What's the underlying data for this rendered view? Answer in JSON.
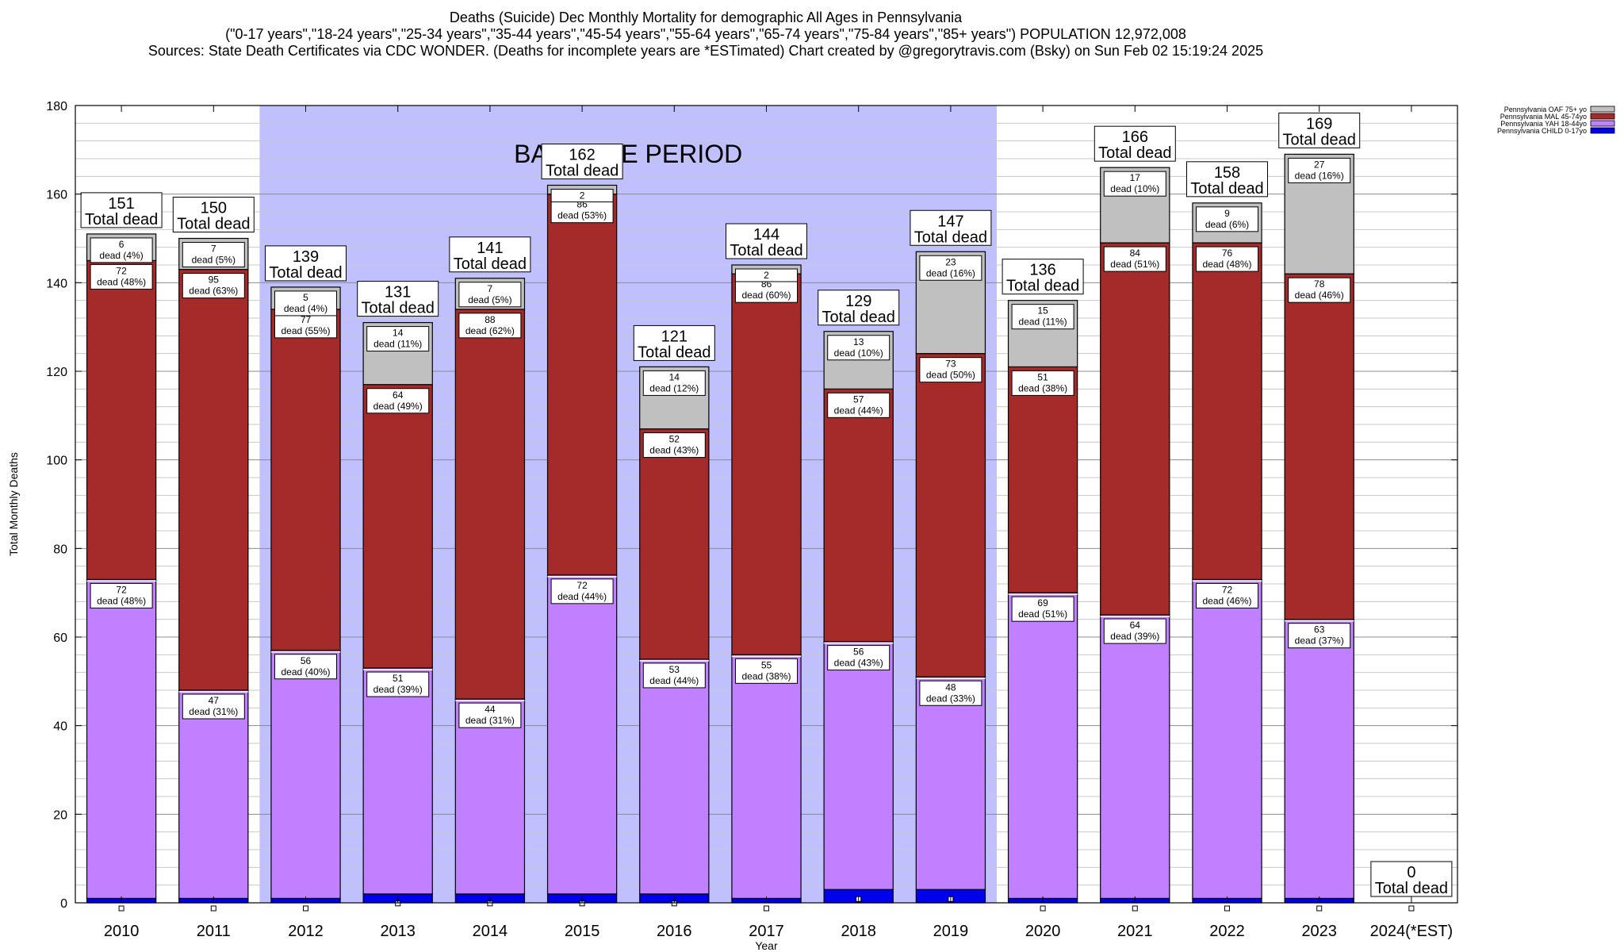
{
  "title": {
    "line1": "Deaths (Suicide) Dec Monthly Mortality for demographic All Ages in Pennsylvania",
    "line2": "(\"0-17 years\",\"18-24 years\",\"25-34 years\",\"35-44 years\",\"45-54 years\",\"55-64 years\",\"65-74 years\",\"75-84 years\",\"85+ years\") POPULATION 12,972,008",
    "sources": "Sources: State Death Certificates via CDC WONDER. (Deaths for incomplete years are *ESTimated)",
    "credit": "Chart created by @gregorytravis.com (Bsky) on Sun Feb 02 15:19:24 2025"
  },
  "chart_data": {
    "type": "bar",
    "stacked": true,
    "title": "Deaths (Suicide) Dec Monthly Mortality for demographic All Ages in Pennsylvania",
    "xlabel": "Year",
    "ylabel": "Total Monthly Deaths",
    "ylim": [
      0,
      180
    ],
    "yticks": [
      0,
      20,
      40,
      60,
      80,
      100,
      120,
      140,
      160,
      180
    ],
    "grid": true,
    "legend_position": "top-right",
    "categories": [
      "2010",
      "2011",
      "2012",
      "2013",
      "2014",
      "2015",
      "2016",
      "2017",
      "2018",
      "2019",
      "2020",
      "2021",
      "2022",
      "2023",
      "2024(*EST)"
    ],
    "series": [
      {
        "name": "Pennsylvania CHILD 0-17yo",
        "color": "#0000ee",
        "values": [
          1,
          1,
          1,
          2,
          2,
          2,
          2,
          1,
          3,
          3,
          1,
          1,
          1,
          1,
          0
        ]
      },
      {
        "name": "Pennsylvania YAH 18-44yo",
        "color": "#c080ff",
        "values": [
          72,
          47,
          56,
          51,
          44,
          72,
          53,
          55,
          56,
          48,
          69,
          64,
          72,
          63,
          0
        ]
      },
      {
        "name": "Pennsylvania MAL 45-74yo",
        "color": "#a52a2a",
        "values": [
          72,
          95,
          77,
          64,
          88,
          86,
          52,
          86,
          57,
          73,
          51,
          84,
          76,
          78,
          0
        ]
      },
      {
        "name": "Pennsylvania OAF 75+ yo",
        "color": "#c0c0c0",
        "values": [
          6,
          7,
          5,
          14,
          7,
          2,
          14,
          2,
          13,
          23,
          15,
          17,
          9,
          27,
          0
        ]
      }
    ],
    "segment_labels": {
      "yah": [
        [
          "72",
          "dead (48%)"
        ],
        [
          "47",
          "dead (31%)"
        ],
        [
          "56",
          "dead (40%)"
        ],
        [
          "51",
          "dead (39%)"
        ],
        [
          "44",
          "dead (31%)"
        ],
        [
          "72",
          "dead (44%)"
        ],
        [
          "53",
          "dead (44%)"
        ],
        [
          "55",
          "dead (38%)"
        ],
        [
          "56",
          "dead (43%)"
        ],
        [
          "48",
          "dead (33%)"
        ],
        [
          "69",
          "dead (51%)"
        ],
        [
          "64",
          "dead (39%)"
        ],
        [
          "72",
          "dead (46%)"
        ],
        [
          "63",
          "dead (37%)"
        ],
        null
      ],
      "mal": [
        [
          "72",
          "dead (48%)"
        ],
        [
          "95",
          "dead (63%)"
        ],
        [
          "77",
          "dead (55%)"
        ],
        [
          "64",
          "dead (49%)"
        ],
        [
          "88",
          "dead (62%)"
        ],
        [
          "86",
          "dead (53%)"
        ],
        [
          "52",
          "dead (43%)"
        ],
        [
          "86",
          "dead (60%)"
        ],
        [
          "57",
          "dead (44%)"
        ],
        [
          "73",
          "dead (50%)"
        ],
        [
          "51",
          "dead (38%)"
        ],
        [
          "84",
          "dead (51%)"
        ],
        [
          "76",
          "dead (48%)"
        ],
        [
          "78",
          "dead (46%)"
        ],
        null
      ],
      "oaf": [
        [
          "6",
          "dead (4%)"
        ],
        [
          "7",
          "dead (5%)"
        ],
        [
          "5",
          "dead (4%)"
        ],
        [
          "14",
          "dead (11%)"
        ],
        [
          "7",
          "dead (5%)"
        ],
        [
          "2",
          ""
        ],
        [
          "14",
          "dead (12%)"
        ],
        [
          "2",
          ""
        ],
        [
          "13",
          "dead (10%)"
        ],
        [
          "23",
          "dead (16%)"
        ],
        [
          "15",
          "dead (11%)"
        ],
        [
          "17",
          "dead (10%)"
        ],
        [
          "9",
          "dead (6%)"
        ],
        [
          "27",
          "dead (16%)"
        ],
        null
      ]
    },
    "totals": [
      151,
      150,
      139,
      131,
      141,
      162,
      121,
      144,
      129,
      147,
      136,
      166,
      158,
      169,
      0
    ],
    "total_suffix": "Total dead",
    "baseline": {
      "label": "BASELINE PERIOD",
      "from": "2012",
      "to": "2019",
      "color": "#c0c0ff"
    }
  }
}
